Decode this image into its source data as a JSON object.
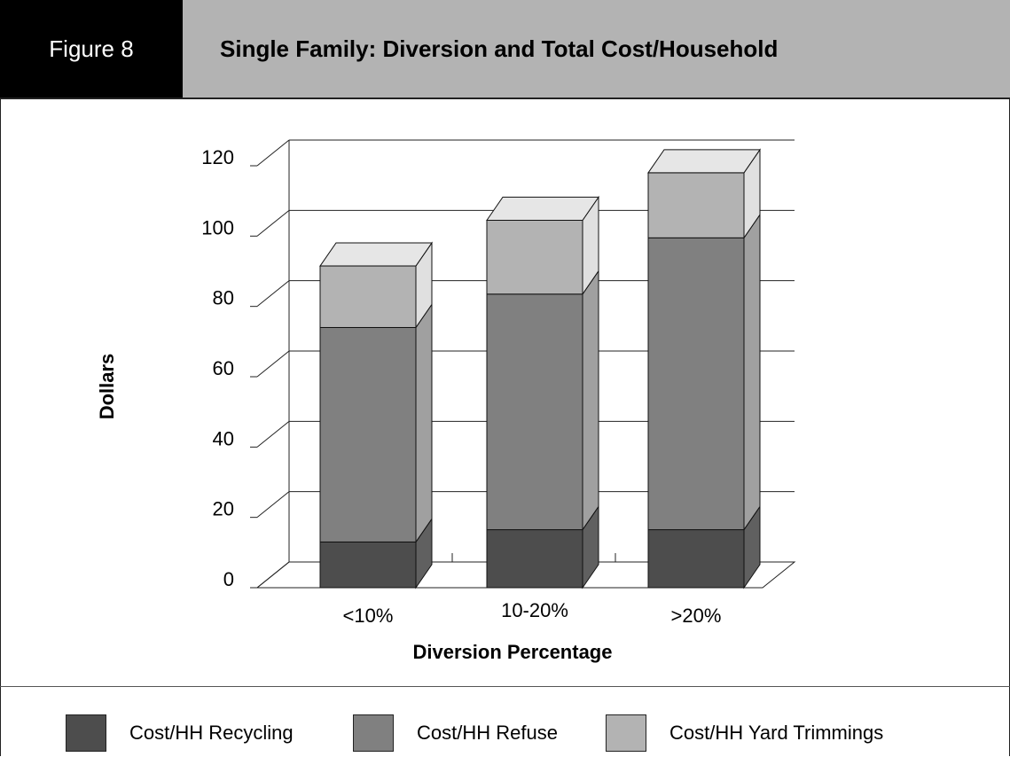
{
  "figure": {
    "label": "Figure 8",
    "title": "Single Family: Diversion and Total Cost/Household"
  },
  "chart_data": {
    "type": "bar",
    "stacked": true,
    "three_d": true,
    "categories": [
      "<10%",
      "10-20%",
      ">20%"
    ],
    "series": [
      {
        "name": "Cost/HH Recycling",
        "values": [
          13,
          16.5,
          16.5
        ],
        "color": "#4d4d4d"
      },
      {
        "name": "Cost/HH Refuse",
        "values": [
          61,
          67,
          83
        ],
        "color": "#808080"
      },
      {
        "name": "Cost/HH Yard Trimmings",
        "values": [
          17.5,
          21,
          18.5
        ],
        "color": "#b3b3b3"
      }
    ],
    "xlabel": "Diversion Percentage",
    "ylabel": "Dollars",
    "ylim": [
      0,
      120
    ],
    "yticks": [
      0,
      20,
      40,
      60,
      80,
      100,
      120
    ],
    "grid": true,
    "legend_position": "bottom"
  }
}
